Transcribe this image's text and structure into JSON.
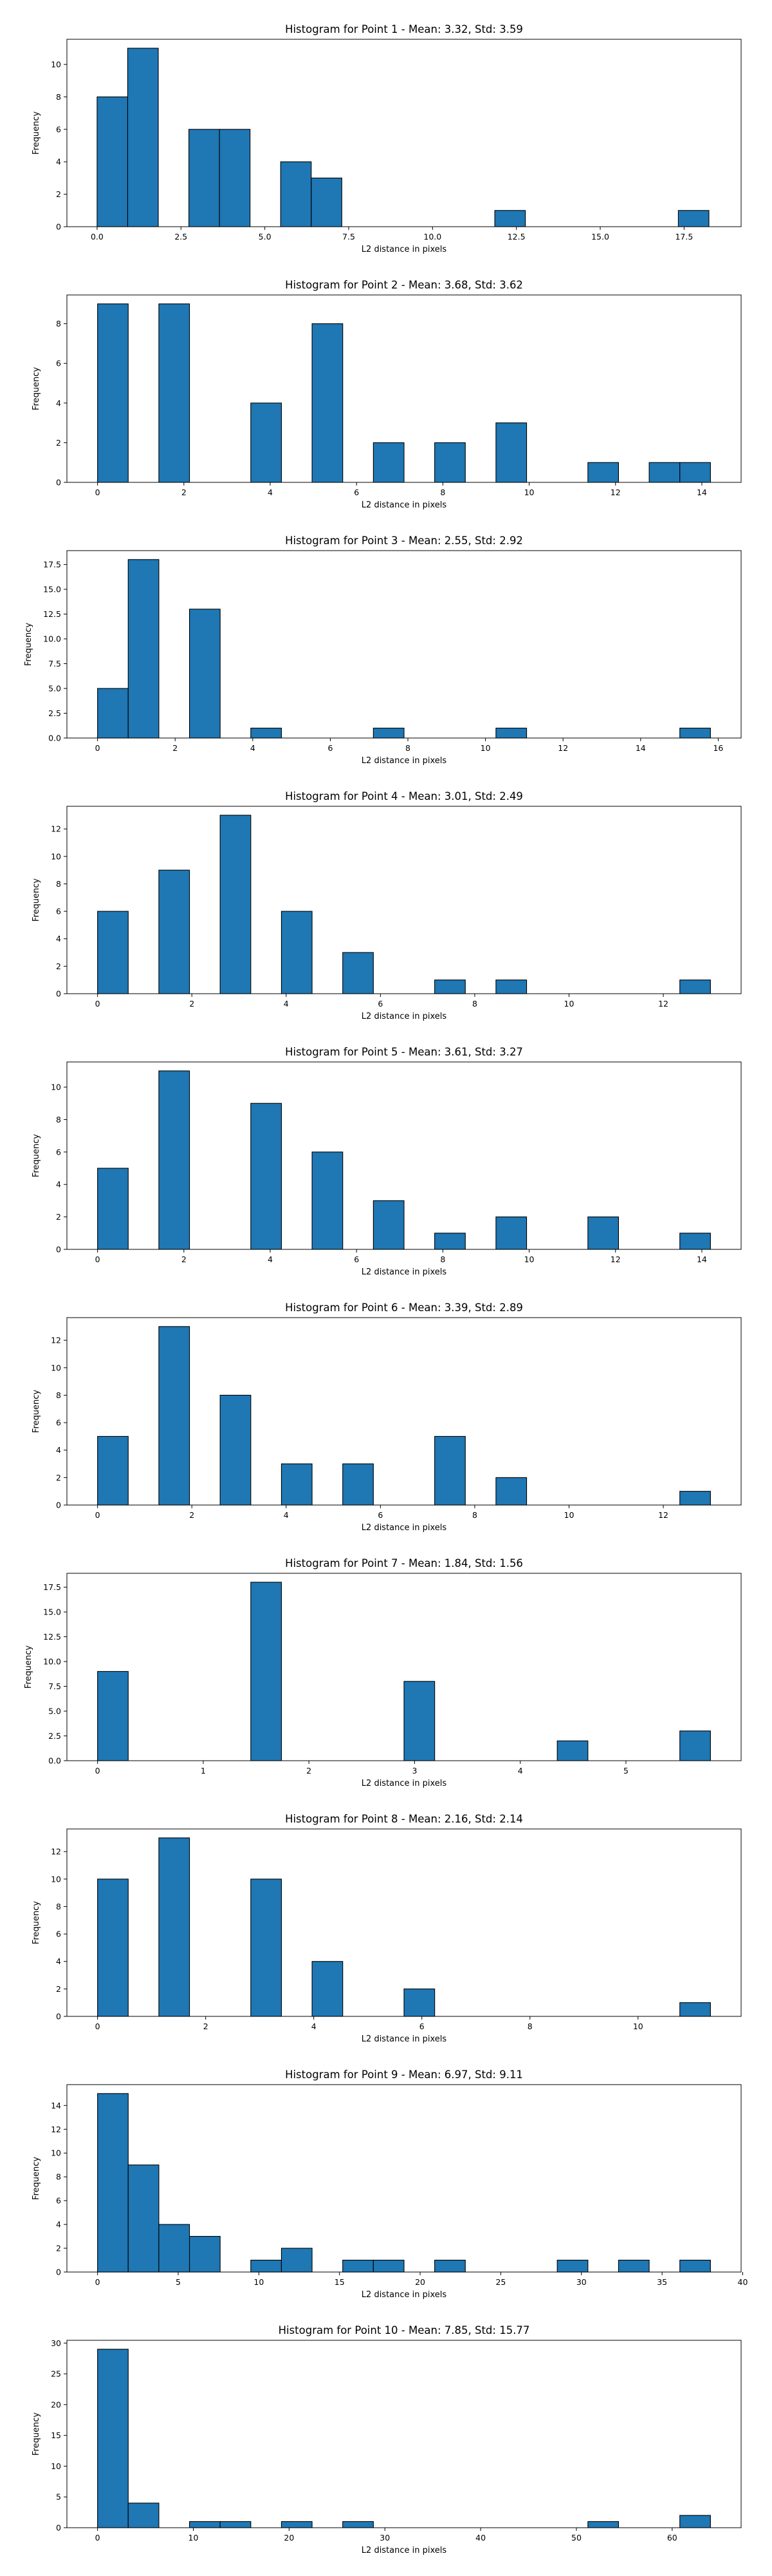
{
  "chart_data": [
    {
      "type": "bar",
      "title": "Histogram for Point 1 - Mean: 3.32, Std: 3.59",
      "xlabel": "L2 distance in pixels",
      "ylabel": "Frequency",
      "xlim": [
        -0.9,
        19.2
      ],
      "ylim": [
        0,
        11.55
      ],
      "xticks": [
        0,
        2.5,
        5,
        7.5,
        10,
        12.5,
        15,
        17.5
      ],
      "xtick_labels": [
        "0.0",
        "2.5",
        "5.0",
        "7.5",
        "10.0",
        "12.5",
        "15.0",
        "17.5"
      ],
      "yticks": [
        0,
        2,
        4,
        6,
        8,
        10
      ],
      "bin_edges": [
        0,
        0.912,
        1.824,
        2.736,
        3.648,
        4.56,
        5.472,
        6.384,
        7.296,
        8.208,
        9.12,
        10.032,
        10.944,
        11.856,
        12.768,
        13.68,
        14.592,
        15.504,
        16.416,
        17.328,
        18.24
      ],
      "counts": [
        8,
        11,
        0,
        6,
        6,
        0,
        4,
        3,
        0,
        0,
        0,
        0,
        0,
        1,
        0,
        0,
        0,
        0,
        0,
        1
      ]
    },
    {
      "type": "bar",
      "title": "Histogram for Point 2 - Mean: 3.68, Std: 3.62",
      "xlabel": "L2 distance in pixels",
      "ylabel": "Frequency",
      "xlim": [
        -0.71,
        14.91
      ],
      "ylim": [
        0,
        9.45
      ],
      "xticks": [
        0,
        2,
        4,
        6,
        8,
        10,
        12,
        14
      ],
      "xtick_labels": [
        "0",
        "2",
        "4",
        "6",
        "8",
        "10",
        "12",
        "14"
      ],
      "yticks": [
        0,
        2,
        4,
        6,
        8
      ],
      "bin_edges": [
        0,
        0.71,
        1.42,
        2.13,
        2.84,
        3.55,
        4.26,
        4.97,
        5.68,
        6.39,
        7.1,
        7.81,
        8.52,
        9.23,
        9.94,
        10.65,
        11.36,
        12.07,
        12.78,
        13.49,
        14.2
      ],
      "counts": [
        9,
        0,
        9,
        0,
        0,
        4,
        0,
        8,
        0,
        2,
        0,
        2,
        0,
        3,
        0,
        0,
        1,
        0,
        1,
        1
      ]
    },
    {
      "type": "bar",
      "title": "Histogram for Point 3 - Mean: 2.55, Std: 2.92",
      "xlabel": "L2 distance in pixels",
      "ylabel": "Frequency",
      "xlim": [
        -0.79,
        16.59
      ],
      "ylim": [
        0,
        18.9
      ],
      "xticks": [
        0,
        2,
        4,
        6,
        8,
        10,
        12,
        14,
        16
      ],
      "xtick_labels": [
        "0",
        "2",
        "4",
        "6",
        "8",
        "10",
        "12",
        "14",
        "16"
      ],
      "yticks": [
        0,
        2.5,
        5,
        7.5,
        10,
        12.5,
        15,
        17.5
      ],
      "ytick_labels": [
        "0.0",
        "2.5",
        "5.0",
        "7.5",
        "10.0",
        "12.5",
        "15.0",
        "17.5"
      ],
      "bin_edges": [
        0,
        0.79,
        1.58,
        2.37,
        3.16,
        3.95,
        4.74,
        5.53,
        6.32,
        7.11,
        7.9,
        8.69,
        9.48,
        10.27,
        11.06,
        11.85,
        12.64,
        13.43,
        14.22,
        15.01,
        15.8
      ],
      "counts": [
        5,
        18,
        0,
        13,
        0,
        1,
        0,
        0,
        0,
        1,
        0,
        0,
        0,
        1,
        0,
        0,
        0,
        0,
        0,
        1
      ]
    },
    {
      "type": "bar",
      "title": "Histogram for Point 4 - Mean: 3.01, Std: 2.49",
      "xlabel": "L2 distance in pixels",
      "ylabel": "Frequency",
      "xlim": [
        -0.65,
        13.65
      ],
      "ylim": [
        0,
        13.65
      ],
      "xticks": [
        0,
        2,
        4,
        6,
        8,
        10,
        12
      ],
      "xtick_labels": [
        "0",
        "2",
        "4",
        "6",
        "8",
        "10",
        "12"
      ],
      "yticks": [
        0,
        2,
        4,
        6,
        8,
        10,
        12
      ],
      "bin_edges": [
        0,
        0.65,
        1.3,
        1.95,
        2.6,
        3.25,
        3.9,
        4.55,
        5.2,
        5.85,
        6.5,
        7.15,
        7.8,
        8.45,
        9.1,
        9.75,
        10.4,
        11.05,
        11.7,
        12.35,
        13.0
      ],
      "counts": [
        6,
        0,
        9,
        0,
        13,
        0,
        6,
        0,
        3,
        0,
        0,
        1,
        0,
        1,
        0,
        0,
        0,
        0,
        0,
        1
      ]
    },
    {
      "type": "bar",
      "title": "Histogram for Point 5 - Mean: 3.61, Std: 3.27",
      "xlabel": "L2 distance in pixels",
      "ylabel": "Frequency",
      "xlim": [
        -0.71,
        14.91
      ],
      "ylim": [
        0,
        11.55
      ],
      "xticks": [
        0,
        2,
        4,
        6,
        8,
        10,
        12,
        14
      ],
      "xtick_labels": [
        "0",
        "2",
        "4",
        "6",
        "8",
        "10",
        "12",
        "14"
      ],
      "yticks": [
        0,
        2,
        4,
        6,
        8,
        10
      ],
      "bin_edges": [
        0,
        0.71,
        1.42,
        2.13,
        2.84,
        3.55,
        4.26,
        4.97,
        5.68,
        6.39,
        7.1,
        7.81,
        8.52,
        9.23,
        9.94,
        10.65,
        11.36,
        12.07,
        12.78,
        13.49,
        14.2
      ],
      "counts": [
        5,
        0,
        11,
        0,
        0,
        9,
        0,
        6,
        0,
        3,
        0,
        1,
        0,
        2,
        0,
        0,
        2,
        0,
        0,
        1
      ]
    },
    {
      "type": "bar",
      "title": "Histogram for Point 6 - Mean: 3.39, Std: 2.89",
      "xlabel": "L2 distance in pixels",
      "ylabel": "Frequency",
      "xlim": [
        -0.65,
        13.65
      ],
      "ylim": [
        0,
        13.65
      ],
      "xticks": [
        0,
        2,
        4,
        6,
        8,
        10,
        12
      ],
      "xtick_labels": [
        "0",
        "2",
        "4",
        "6",
        "8",
        "10",
        "12"
      ],
      "yticks": [
        0,
        2,
        4,
        6,
        8,
        10,
        12
      ],
      "bin_edges": [
        0,
        0.65,
        1.3,
        1.95,
        2.6,
        3.25,
        3.9,
        4.55,
        5.2,
        5.85,
        6.5,
        7.15,
        7.8,
        8.45,
        9.1,
        9.75,
        10.4,
        11.05,
        11.7,
        12.35,
        13.0
      ],
      "counts": [
        5,
        0,
        13,
        0,
        8,
        0,
        3,
        0,
        3,
        0,
        0,
        5,
        0,
        2,
        0,
        0,
        0,
        0,
        0,
        1
      ]
    },
    {
      "type": "bar",
      "title": "Histogram for Point 7 - Mean: 1.84, Std: 1.56",
      "xlabel": "L2 distance in pixels",
      "ylabel": "Frequency",
      "xlim": [
        -0.29,
        6.09
      ],
      "ylim": [
        0,
        18.9
      ],
      "xticks": [
        0,
        1,
        2,
        3,
        4,
        5
      ],
      "xtick_labels": [
        "0",
        "1",
        "2",
        "3",
        "4",
        "5"
      ],
      "yticks": [
        0,
        2.5,
        5,
        7.5,
        10,
        12.5,
        15,
        17.5
      ],
      "ytick_labels": [
        "0.0",
        "2.5",
        "5.0",
        "7.5",
        "10.0",
        "12.5",
        "15.0",
        "17.5"
      ],
      "bin_edges": [
        0,
        0.29,
        0.58,
        0.87,
        1.16,
        1.45,
        1.74,
        2.03,
        2.32,
        2.61,
        2.9,
        3.19,
        3.48,
        3.77,
        4.06,
        4.35,
        4.64,
        4.93,
        5.22,
        5.51,
        5.8
      ],
      "counts": [
        9,
        0,
        0,
        0,
        0,
        18,
        0,
        0,
        0,
        0,
        8,
        0,
        0,
        0,
        0,
        2,
        0,
        0,
        0,
        3
      ]
    },
    {
      "type": "bar",
      "title": "Histogram for Point 8 - Mean: 2.16, Std: 2.14",
      "xlabel": "L2 distance in pixels",
      "ylabel": "Frequency",
      "xlim": [
        -0.567,
        11.907
      ],
      "ylim": [
        0,
        13.65
      ],
      "xticks": [
        0,
        2,
        4,
        6,
        8,
        10
      ],
      "xtick_labels": [
        "0",
        "2",
        "4",
        "6",
        "8",
        "10"
      ],
      "yticks": [
        0,
        2,
        4,
        6,
        8,
        10,
        12
      ],
      "bin_edges": [
        0,
        0.567,
        1.134,
        1.701,
        2.268,
        2.835,
        3.402,
        3.969,
        4.536,
        5.103,
        5.67,
        6.237,
        6.804,
        7.371,
        7.938,
        8.505,
        9.072,
        9.639,
        10.206,
        10.773,
        11.34
      ],
      "counts": [
        10,
        0,
        13,
        0,
        0,
        10,
        0,
        4,
        0,
        0,
        2,
        0,
        0,
        0,
        0,
        0,
        0,
        0,
        0,
        1
      ]
    },
    {
      "type": "bar",
      "title": "Histogram for Point 9 - Mean: 6.97, Std: 9.11",
      "xlabel": "L2 distance in pixels",
      "ylabel": "Frequency",
      "xlim": [
        -1.9,
        39.9
      ],
      "ylim": [
        0,
        15.75
      ],
      "xticks": [
        0,
        5,
        10,
        15,
        20,
        25,
        30,
        35,
        40
      ],
      "xtick_labels": [
        "0",
        "5",
        "10",
        "15",
        "20",
        "25",
        "30",
        "35",
        "40"
      ],
      "yticks": [
        0,
        2,
        4,
        6,
        8,
        10,
        12,
        14
      ],
      "bin_edges": [
        0,
        1.9,
        3.8,
        5.7,
        7.6,
        9.5,
        11.4,
        13.3,
        15.2,
        17.1,
        19.0,
        20.9,
        22.8,
        24.7,
        26.6,
        28.5,
        30.4,
        32.3,
        34.2,
        36.1,
        38.0
      ],
      "counts": [
        15,
        9,
        4,
        3,
        0,
        1,
        2,
        0,
        1,
        1,
        0,
        1,
        0,
        0,
        0,
        1,
        0,
        1,
        0,
        1
      ]
    },
    {
      "type": "bar",
      "title": "Histogram for Point 10 - Mean: 7.85, Std: 15.77",
      "xlabel": "L2 distance in pixels",
      "ylabel": "Frequency",
      "xlim": [
        -3.2,
        67.2
      ],
      "ylim": [
        0,
        30.45
      ],
      "xticks": [
        0,
        10,
        20,
        30,
        40,
        50,
        60
      ],
      "xtick_labels": [
        "0",
        "10",
        "20",
        "30",
        "40",
        "50",
        "60"
      ],
      "yticks": [
        0,
        5,
        10,
        15,
        20,
        25,
        30
      ],
      "bin_edges": [
        0,
        3.2,
        6.4,
        9.6,
        12.8,
        16.0,
        19.2,
        22.4,
        25.6,
        28.8,
        32.0,
        35.2,
        38.4,
        41.6,
        44.8,
        48.0,
        51.2,
        54.4,
        57.6,
        60.8,
        64.0
      ],
      "counts": [
        29,
        4,
        0,
        1,
        1,
        0,
        1,
        0,
        1,
        0,
        0,
        0,
        0,
        0,
        0,
        0,
        1,
        0,
        0,
        2
      ]
    }
  ],
  "colors": {
    "bar_fill": "#1f77b4",
    "bar_edge": "#000000",
    "axes": "#000000",
    "background": "#ffffff"
  }
}
